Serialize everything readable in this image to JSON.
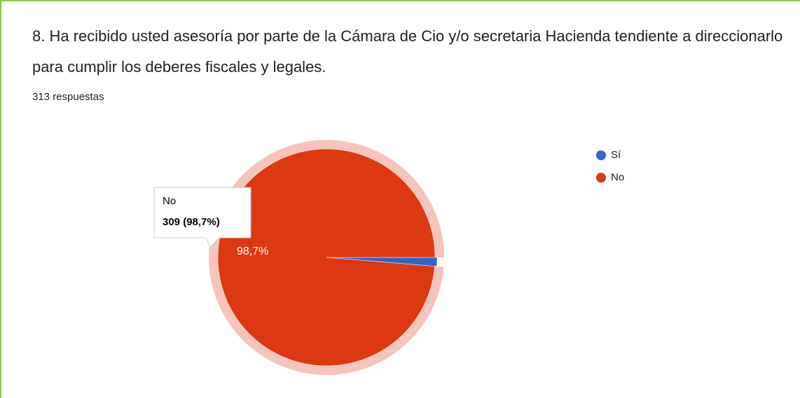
{
  "chart_data": {
    "type": "pie",
    "title": "8. Ha recibido usted asesoría por parte de la Cámara de Cio y/o secretaria Hacienda tendiente a direccionarlo para cumplir los deberes fiscales y legales.",
    "subtitle": "313 respuestas",
    "categories": [
      "Sí",
      "No"
    ],
    "values": [
      1.3,
      98.7
    ],
    "value_labels": [
      null,
      "98,7%"
    ],
    "colors": [
      "#3366cc",
      "#dc3912"
    ],
    "legend": "right",
    "tooltip": {
      "label": "309 (98,7%)"
    }
  }
}
